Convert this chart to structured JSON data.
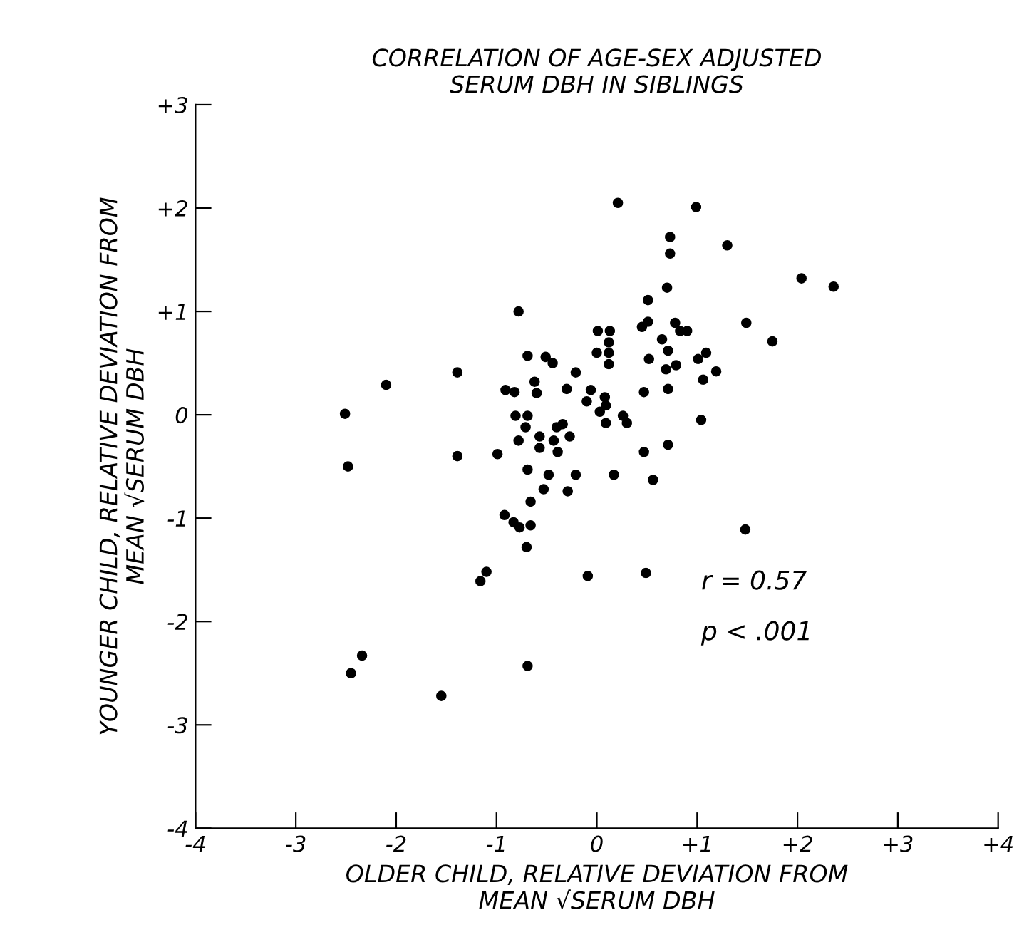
{
  "chart_data": {
    "type": "scatter",
    "title": "CORRELATION OF AGE-SEX ADJUSTED\nSERUM DBH IN SIBLINGS",
    "xlabel": "OLDER CHILD, RELATIVE DEVIATION FROM\nMEAN √SERUM DBH",
    "ylabel": "YOUNGER CHILD, RELATIVE DEVIATION FROM\nMEAN √SERUM DBH",
    "xlim": [
      -4,
      4
    ],
    "ylim": [
      -4,
      3
    ],
    "xticks": [
      {
        "value": -4,
        "label": "-4"
      },
      {
        "value": -3,
        "label": "-3"
      },
      {
        "value": -2,
        "label": "-2"
      },
      {
        "value": -1,
        "label": "-1"
      },
      0,
      {
        "value": 1,
        "label": "+1"
      },
      {
        "value": 2,
        "label": "+2"
      },
      {
        "value": 3,
        "label": "+3"
      },
      {
        "value": 4,
        "label": "+4"
      }
    ],
    "yticks": [
      {
        "value": -4,
        "label": "-4"
      },
      {
        "value": -3,
        "label": "-3"
      },
      {
        "value": -2,
        "label": "-2"
      },
      {
        "value": -1,
        "label": "-1"
      },
      0,
      {
        "value": 1,
        "label": "+1"
      },
      {
        "value": 2,
        "label": "+2"
      },
      {
        "value": 3,
        "label": "+3"
      }
    ],
    "grid": false,
    "marker": "circle",
    "annotations": [
      "r = 0.57",
      "p < .001"
    ],
    "series": [
      {
        "color": "#000000",
        "x": [
          0.21,
          -0.78,
          0.01,
          0.13,
          0.12,
          0.12,
          0.0,
          0.12,
          -0.69,
          -0.51,
          -0.44,
          -0.21,
          -1.39,
          -2.1,
          -0.62,
          -0.91,
          -0.82,
          -0.6,
          -0.3,
          -0.06,
          -0.1,
          0.08,
          0.09,
          0.03,
          0.09,
          0.26,
          0.3,
          -2.51,
          -0.81,
          -0.69,
          -0.71,
          -0.4,
          -0.34,
          -0.78,
          -0.57,
          -0.43,
          -0.27,
          -0.57,
          -0.39,
          -0.99,
          -1.39,
          -2.48,
          -0.69,
          -0.48,
          -0.21,
          0.17,
          -0.53,
          -0.29,
          -0.66,
          -0.92,
          -0.83,
          -0.77,
          -0.66,
          -0.7,
          -1.1,
          -1.16,
          -0.09,
          -2.34,
          -2.45,
          -0.69,
          -1.55,
          0.99,
          0.73,
          0.73,
          1.3,
          2.04,
          2.36,
          0.7,
          0.51,
          0.51,
          0.45,
          0.78,
          0.83,
          0.9,
          1.49,
          1.75,
          0.65,
          0.71,
          0.52,
          1.01,
          1.09,
          0.79,
          0.69,
          1.19,
          1.06,
          0.47,
          0.71,
          1.04,
          0.71,
          0.47,
          0.56,
          1.48,
          0.49
        ],
        "values": [
          2.05,
          1.0,
          0.81,
          0.81,
          0.7,
          0.6,
          0.6,
          0.49,
          0.57,
          0.56,
          0.5,
          0.41,
          0.41,
          0.29,
          0.32,
          0.24,
          0.22,
          0.21,
          0.25,
          0.24,
          0.13,
          0.17,
          0.09,
          0.03,
          -0.08,
          -0.01,
          -0.08,
          0.01,
          -0.01,
          -0.01,
          -0.12,
          -0.12,
          -0.09,
          -0.25,
          -0.21,
          -0.25,
          -0.21,
          -0.32,
          -0.36,
          -0.38,
          -0.4,
          -0.5,
          -0.53,
          -0.58,
          -0.58,
          -0.58,
          -0.72,
          -0.74,
          -0.84,
          -0.97,
          -1.04,
          -1.09,
          -1.07,
          -1.28,
          -1.52,
          -1.61,
          -1.56,
          -2.33,
          -2.5,
          -2.43,
          -2.72,
          2.01,
          1.72,
          1.56,
          1.64,
          1.32,
          1.24,
          1.23,
          1.11,
          0.9,
          0.85,
          0.89,
          0.81,
          0.81,
          0.89,
          0.71,
          0.73,
          0.62,
          0.54,
          0.54,
          0.6,
          0.48,
          0.44,
          0.42,
          0.34,
          0.22,
          0.25,
          -0.05,
          -0.29,
          -0.36,
          -0.63,
          -1.11,
          -1.53
        ]
      }
    ]
  }
}
